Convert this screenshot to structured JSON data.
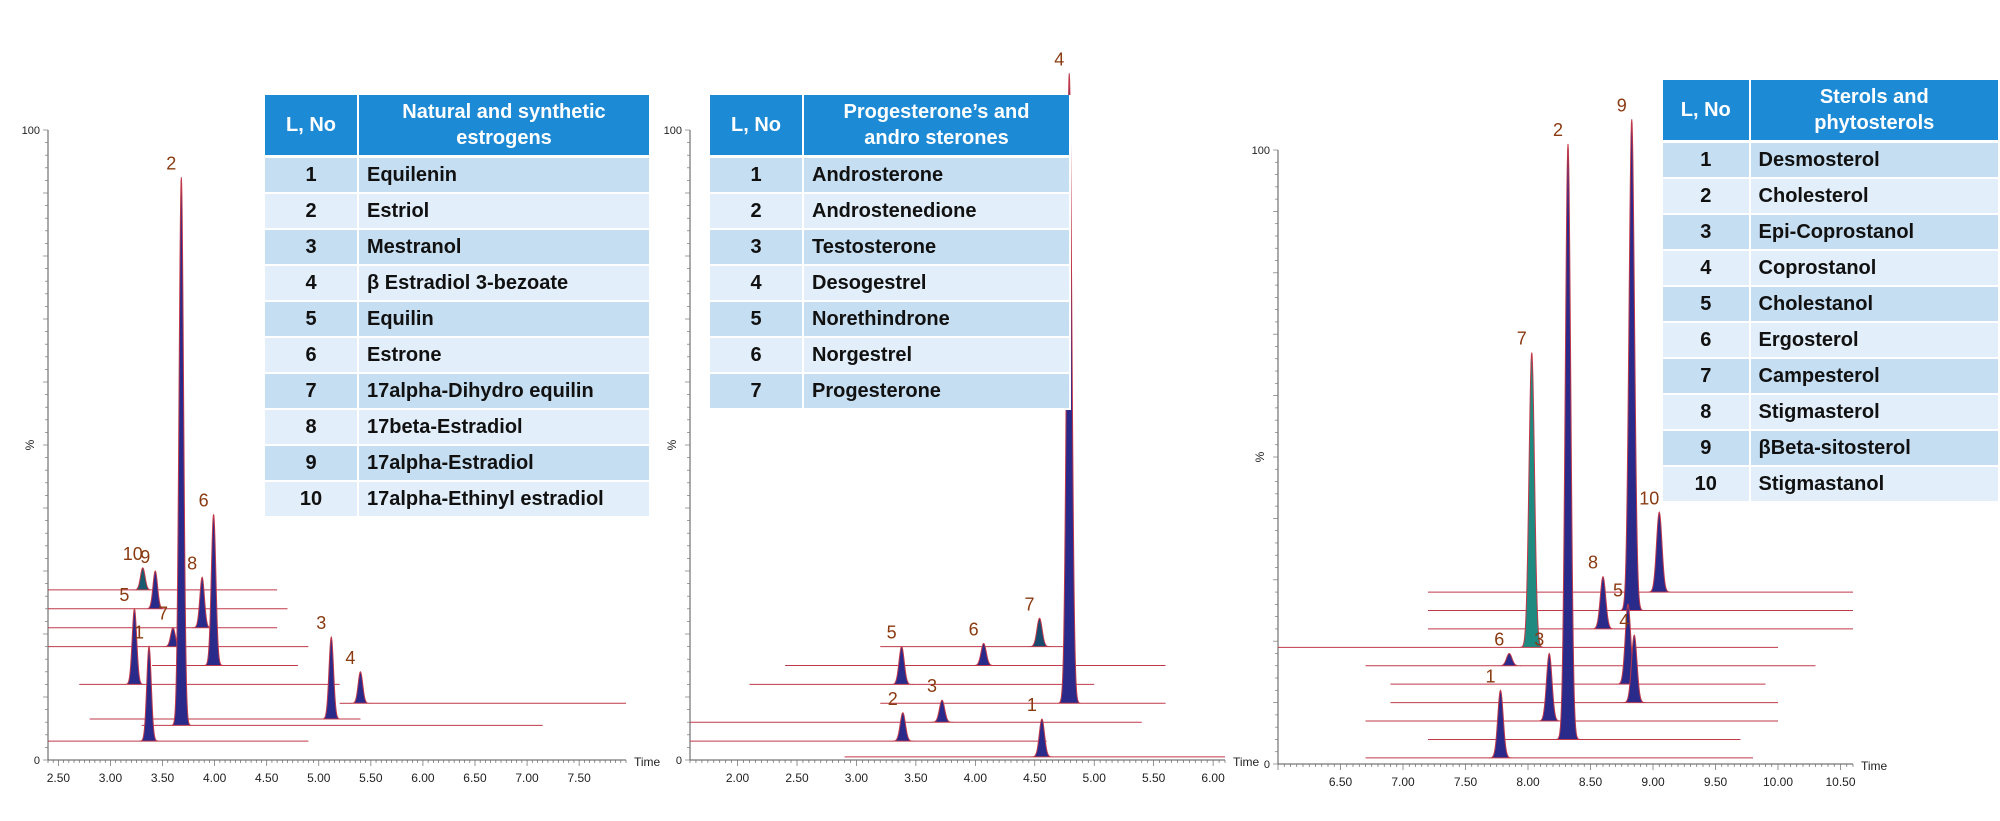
{
  "chart_data": [
    {
      "type": "line",
      "xlabel": "Time",
      "ylabel": "%",
      "xlim": [
        2.4,
        7.95
      ],
      "ylim": [
        0,
        100
      ],
      "x_ticks": [
        "2.50",
        "3.00",
        "3.50",
        "4.00",
        "4.50",
        "5.00",
        "5.50",
        "6.00",
        "6.50",
        "7.00",
        "7.50"
      ],
      "y_ticks": [
        "0",
        "100"
      ],
      "legend": {
        "headers": [
          "L, No",
          "Natural and synthetic estrogens"
        ],
        "rows": [
          [
            "1",
            "Equilenin"
          ],
          [
            "2",
            "Estriol"
          ],
          [
            "3",
            "Mestranol"
          ],
          [
            "4",
            "β Estradiol 3-bezoate"
          ],
          [
            "5",
            "Equilin"
          ],
          [
            "6",
            "Estrone"
          ],
          [
            "7",
            "17alpha-Dihydro equilin"
          ],
          [
            "8",
            "17beta-Estradiol"
          ],
          [
            "9",
            "17alpha-Estradiol"
          ],
          [
            "10",
            "17alpha-Ethinyl estradiol"
          ]
        ]
      },
      "series": [
        {
          "label": "1",
          "rt": 3.37,
          "height": 15,
          "color": "#2a2a8a",
          "baseline": 3,
          "x_start": 2.4,
          "x_end": 4.9
        },
        {
          "label": "2",
          "rt": 3.68,
          "height": 87,
          "color": "#2a2a8a",
          "baseline": 5.5,
          "x_start": 3.3,
          "x_end": 7.15
        },
        {
          "label": "3",
          "rt": 5.12,
          "height": 13,
          "color": "#2a2a8a",
          "baseline": 6.5,
          "x_start": 2.8,
          "x_end": 5.4
        },
        {
          "label": "4",
          "rt": 5.4,
          "height": 5,
          "color": "#2a2a8a",
          "baseline": 9,
          "x_start": 5.2,
          "x_end": 7.95
        },
        {
          "label": "5",
          "rt": 3.23,
          "height": 12,
          "color": "#2a2a8a",
          "baseline": 12,
          "x_start": 2.7,
          "x_end": 5.2
        },
        {
          "label": "6",
          "rt": 3.99,
          "height": 24,
          "color": "#2a2a8a",
          "baseline": 15,
          "x_start": 3.4,
          "x_end": 4.8
        },
        {
          "label": "7",
          "rt": 3.6,
          "height": 3,
          "color": "#2a2a8a",
          "baseline": 18,
          "x_start": 2.4,
          "x_end": 4.9
        },
        {
          "label": "8",
          "rt": 3.88,
          "height": 8,
          "color": "#2a2a8a",
          "baseline": 21,
          "x_start": 2.4,
          "x_end": 4.6
        },
        {
          "label": "9",
          "rt": 3.43,
          "height": 6,
          "color": "#2a2a8a",
          "baseline": 24,
          "x_start": 2.4,
          "x_end": 4.7
        },
        {
          "label": "10",
          "rt": 3.31,
          "height": 3.5,
          "color": "#1a5a6e",
          "baseline": 27,
          "x_start": 2.4,
          "x_end": 4.6
        }
      ]
    },
    {
      "type": "line",
      "xlabel": "Time",
      "ylabel": "%",
      "xlim": [
        1.6,
        6.1
      ],
      "ylim": [
        0,
        100
      ],
      "x_ticks": [
        "2.00",
        "2.50",
        "3.00",
        "3.50",
        "4.00",
        "4.50",
        "5.00",
        "5.50",
        "6.00"
      ],
      "y_ticks": [
        "0",
        "100"
      ],
      "legend": {
        "headers": [
          "L, No",
          "Progesterone’s and andro sterones"
        ],
        "rows": [
          [
            "1",
            "Androsterone"
          ],
          [
            "2",
            "Androstenedione"
          ],
          [
            "3",
            "Testosterone"
          ],
          [
            "4",
            "Desogestrel"
          ],
          [
            "5",
            "Norethindrone"
          ],
          [
            "6",
            "Norgestrel"
          ],
          [
            "7",
            "Progesterone"
          ]
        ]
      },
      "series": [
        {
          "label": "1",
          "rt": 4.56,
          "height": 6,
          "color": "#2a2a8a",
          "baseline": 0.5,
          "x_start": 2.9,
          "x_end": 6.1
        },
        {
          "label": "2",
          "rt": 3.39,
          "height": 4.5,
          "color": "#2a2a8a",
          "baseline": 3,
          "x_start": 1.6,
          "x_end": 4.6
        },
        {
          "label": "3",
          "rt": 3.72,
          "height": 3.5,
          "color": "#2a2a8a",
          "baseline": 6,
          "x_start": 1.6,
          "x_end": 5.4
        },
        {
          "label": "4",
          "rt": 4.79,
          "height": 100,
          "color": "#2a2a8a",
          "baseline": 9,
          "x_start": 3.2,
          "x_end": 5.6
        },
        {
          "label": "5",
          "rt": 3.38,
          "height": 6,
          "color": "#2a2a8a",
          "baseline": 12,
          "x_start": 2.1,
          "x_end": 5.0
        },
        {
          "label": "6",
          "rt": 4.07,
          "height": 3.5,
          "color": "#2a2a8a",
          "baseline": 15,
          "x_start": 2.4,
          "x_end": 5.6
        },
        {
          "label": "7",
          "rt": 4.54,
          "height": 4.5,
          "color": "#1a4a6e",
          "baseline": 18,
          "x_start": 3.2,
          "x_end": 4.8
        }
      ]
    },
    {
      "type": "line",
      "xlabel": "Time",
      "ylabel": "%",
      "xlim": [
        6.0,
        10.6
      ],
      "ylim": [
        0,
        100
      ],
      "x_ticks": [
        "6.50",
        "7.00",
        "7.50",
        "8.00",
        "8.50",
        "9.00",
        "9.50",
        "10.00",
        "10.50"
      ],
      "y_ticks": [
        "0",
        "100"
      ],
      "legend": {
        "headers": [
          "L, No",
          "Sterols and phytosterols"
        ],
        "rows": [
          [
            "1",
            "Desmosterol"
          ],
          [
            "2",
            "Cholesterol"
          ],
          [
            "3",
            "Epi-Coprostanol"
          ],
          [
            "4",
            "Coprostanol"
          ],
          [
            "5",
            "Cholestanol"
          ],
          [
            "6",
            "Ergosterol"
          ],
          [
            "7",
            "Campesterol"
          ],
          [
            "8",
            "Stigmasterol"
          ],
          [
            "9",
            "βBeta-sitosterol"
          ],
          [
            "10",
            "Stigmastanol"
          ]
        ]
      },
      "series": [
        {
          "label": "1",
          "rt": 7.78,
          "height": 11,
          "color": "#2a2a8a",
          "baseline": 1,
          "x_start": 6.7,
          "x_end": 9.8
        },
        {
          "label": "2",
          "rt": 8.32,
          "height": 97,
          "color": "#2a2a8a",
          "baseline": 4,
          "x_start": 7.2,
          "x_end": 9.7
        },
        {
          "label": "3",
          "rt": 8.17,
          "height": 11,
          "color": "#2a2a8a",
          "baseline": 7,
          "x_start": 6.7,
          "x_end": 10.0
        },
        {
          "label": "4",
          "rt": 8.85,
          "height": 11,
          "color": "#2a2a8a",
          "baseline": 10,
          "x_start": 6.9,
          "x_end": 10.0
        },
        {
          "label": "5",
          "rt": 8.8,
          "height": 13,
          "color": "#2a2a8a",
          "baseline": 13,
          "x_start": 6.9,
          "x_end": 9.9
        },
        {
          "label": "6",
          "rt": 7.85,
          "height": 2,
          "color": "#2a2a8a",
          "baseline": 16,
          "x_start": 6.7,
          "x_end": 10.3
        },
        {
          "label": "7",
          "rt": 8.03,
          "height": 48,
          "color": "#1f8a80",
          "baseline": 19,
          "x_start": 6.0,
          "x_end": 10.0
        },
        {
          "label": "8",
          "rt": 8.6,
          "height": 8.5,
          "color": "#2a2a8a",
          "baseline": 22,
          "x_start": 7.2,
          "x_end": 10.6
        },
        {
          "label": "9",
          "rt": 8.83,
          "height": 80,
          "color": "#2a2a8a",
          "baseline": 25,
          "x_start": 7.2,
          "x_end": 10.6
        },
        {
          "label": "10",
          "rt": 9.05,
          "height": 13,
          "color": "#2a2a8a",
          "baseline": 28,
          "x_start": 7.2,
          "x_end": 10.6
        }
      ]
    }
  ]
}
